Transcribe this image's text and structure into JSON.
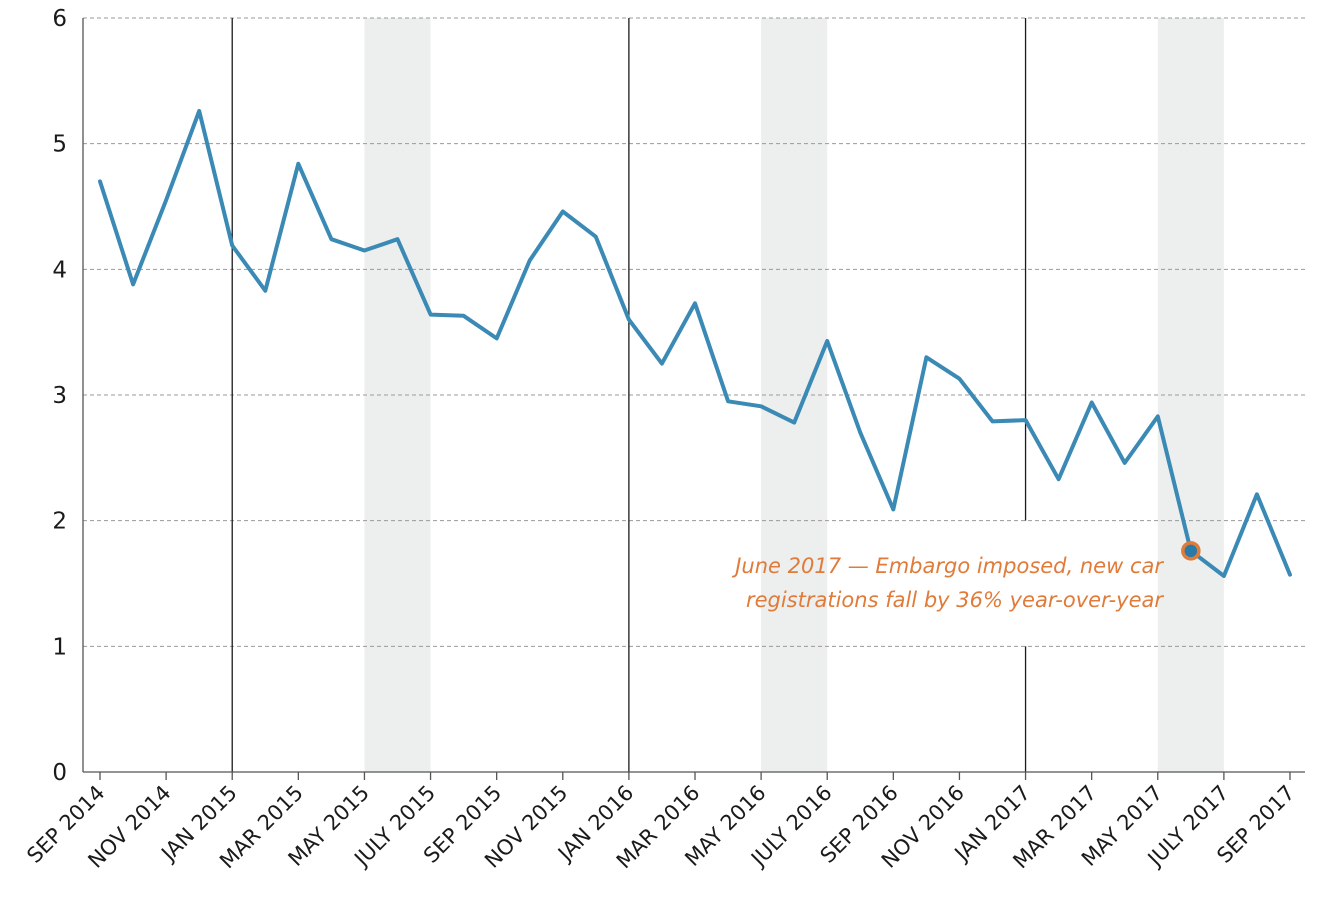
{
  "chart_data": {
    "type": "line",
    "title": "",
    "xlabel": "",
    "ylabel": "",
    "ylim": [
      0,
      6
    ],
    "y_ticks": [
      0,
      1,
      2,
      3,
      4,
      5,
      6
    ],
    "grid": "horizontal dashed",
    "x": [
      "Sep 2014",
      "Oct 2014",
      "Nov 2014",
      "Dec 2014",
      "Jan 2015",
      "Feb 2015",
      "Mar 2015",
      "Apr 2015",
      "May 2015",
      "Jun 2015",
      "Jul 2015",
      "Aug 2015",
      "Sep 2015",
      "Oct 2015",
      "Nov 2015",
      "Dec 2015",
      "Jan 2016",
      "Feb 2016",
      "Mar 2016",
      "Apr 2016",
      "May 2016",
      "Jun 2016",
      "Jul 2016",
      "Aug 2016",
      "Sep 2016",
      "Oct 2016",
      "Nov 2016",
      "Dec 2016",
      "Jan 2017",
      "Feb 2017",
      "Mar 2017",
      "Apr 2017",
      "May 2017",
      "Jun 2017",
      "Jul 2017",
      "Aug 2017",
      "Sep 2017"
    ],
    "x_tick_labels": [
      "SEP 2014",
      "NOV 2014",
      "JAN 2015",
      "MAR 2015",
      "MAY 2015",
      "JULY 2015",
      "SEP 2015",
      "NOV 2015",
      "JAN 2016",
      "MAR 2016",
      "MAY 2016",
      "JULY 2016",
      "SEP 2016",
      "NOV 2016",
      "JAN 2017",
      "MAR 2017",
      "MAY 2017",
      "JULY 2017",
      "SEP 2017"
    ],
    "series": [
      {
        "color": "#3a8ab5",
        "values": [
          4.7,
          3.88,
          4.55,
          5.26,
          4.19,
          3.83,
          4.84,
          4.24,
          4.15,
          4.24,
          3.64,
          3.63,
          3.45,
          4.07,
          4.46,
          4.26,
          3.6,
          3.25,
          3.73,
          2.95,
          2.91,
          2.78,
          3.43,
          2.7,
          2.09,
          3.3,
          3.13,
          2.79,
          2.8,
          2.33,
          2.94,
          2.46,
          2.83,
          1.76,
          1.56,
          2.21,
          1.57
        ]
      }
    ],
    "shaded_periods": [
      {
        "start": "May 2015",
        "end": "Jul 2015"
      },
      {
        "start": "May 2016",
        "end": "Jul 2016"
      },
      {
        "start": "May 2017",
        "end": "Jul 2017"
      }
    ],
    "year_dividers": [
      "Jan 2015",
      "Jan 2016",
      "Jan 2017"
    ],
    "annotation": {
      "x": "Jun 2017",
      "y": 1.76,
      "color": "#e07b39",
      "lines": [
        "June 2017 — Embargo imposed, new car",
        "registrations fall by 36% year-over-year"
      ]
    }
  }
}
